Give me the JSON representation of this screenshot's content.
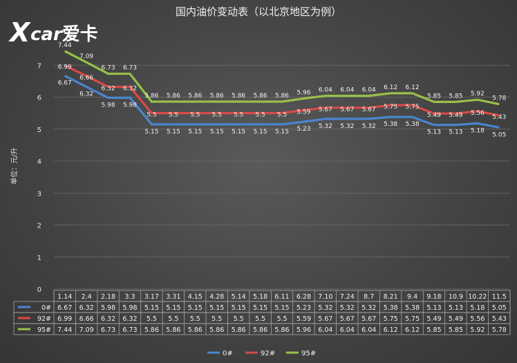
{
  "logo": {
    "text": "Xcar爱卡"
  },
  "chart_data": {
    "type": "line",
    "title": "国内油价变动表（以北京地区为例）",
    "ylabel": "单位：元/升",
    "xlabel": "",
    "ylim": [
      0,
      8
    ],
    "yticks": [
      0,
      1,
      2,
      3,
      4,
      5,
      6,
      7
    ],
    "grid": true,
    "legend_position": "bottom",
    "categories": [
      "1.14",
      "2.4",
      "2.18",
      "3.3",
      "3.17",
      "3.31",
      "4.15",
      "4.28",
      "5.14",
      "5.18",
      "6.11",
      "6.28",
      "7.10",
      "7.24",
      "8.7",
      "8.21",
      "9.4",
      "9.18",
      "10.9",
      "10.22",
      "11.5"
    ],
    "series": [
      {
        "name": "0#",
        "color": "#4a86d0",
        "values": [
          6.67,
          6.32,
          5.98,
          5.98,
          5.15,
          5.15,
          5.15,
          5.15,
          5.15,
          5.15,
          5.15,
          5.23,
          5.32,
          5.32,
          5.32,
          5.38,
          5.38,
          5.13,
          5.13,
          5.18,
          5.05
        ]
      },
      {
        "name": "92#",
        "color": "#d84a46",
        "values": [
          6.99,
          6.66,
          6.32,
          6.32,
          5.5,
          5.5,
          5.5,
          5.5,
          5.5,
          5.5,
          5.5,
          5.59,
          5.67,
          5.67,
          5.67,
          5.75,
          5.75,
          5.49,
          5.49,
          5.56,
          5.43
        ]
      },
      {
        "name": "95#",
        "color": "#98c04a",
        "values": [
          7.44,
          7.09,
          6.73,
          6.73,
          5.86,
          5.86,
          5.86,
          5.86,
          5.86,
          5.86,
          5.86,
          5.96,
          6.04,
          6.04,
          6.04,
          6.12,
          6.12,
          5.85,
          5.85,
          5.92,
          5.78
        ]
      }
    ]
  }
}
